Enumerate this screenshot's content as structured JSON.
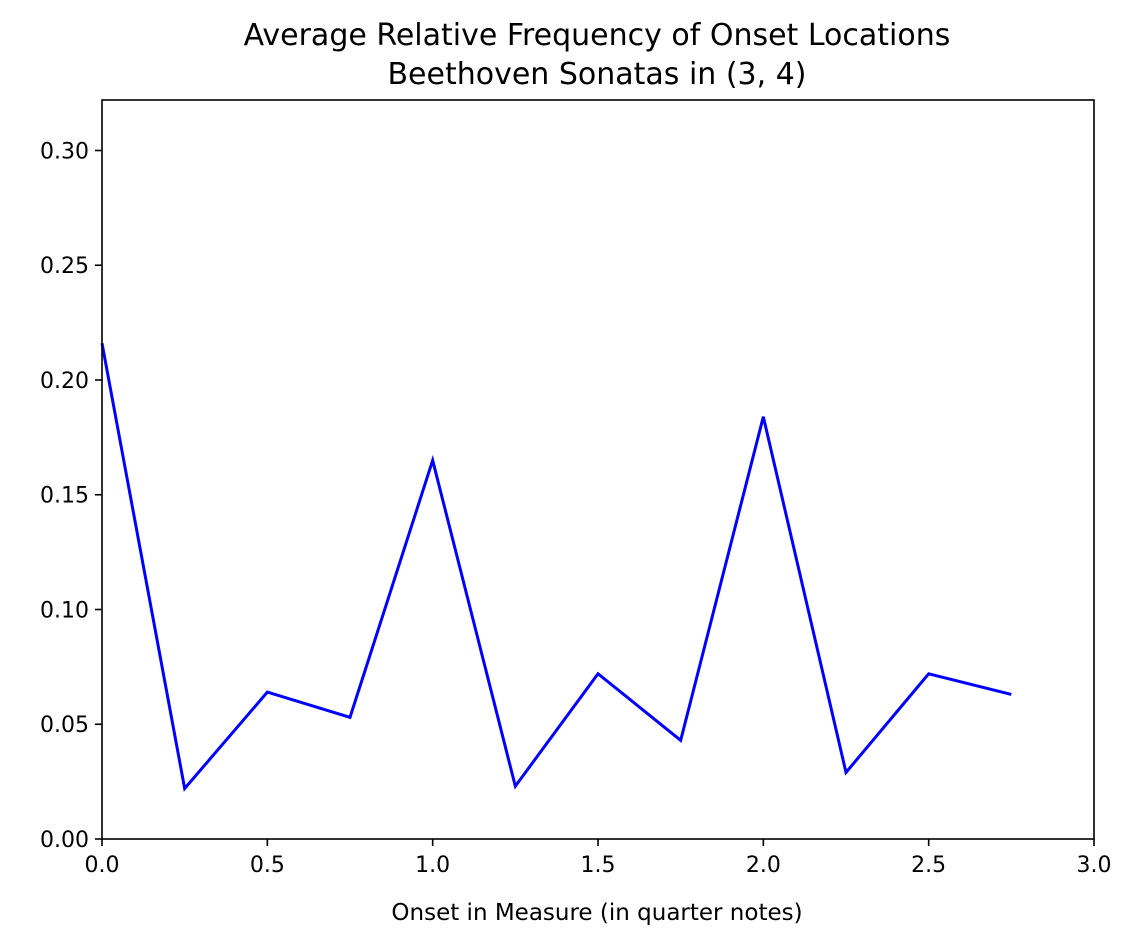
{
  "chart_data": {
    "type": "line",
    "title_lines": [
      "Average Relative Frequency of Onset Locations",
      "Beethoven Sonatas in (3, 4)"
    ],
    "xlabel": "Onset in Measure (in quarter notes)",
    "ylabel": "",
    "xlim": [
      0.0,
      3.0
    ],
    "ylim": [
      0.0,
      0.322
    ],
    "x_ticks": [
      0.0,
      0.5,
      1.0,
      1.5,
      2.0,
      2.5,
      3.0
    ],
    "x_tick_labels": [
      "0.0",
      "0.5",
      "1.0",
      "1.5",
      "2.0",
      "2.5",
      "3.0"
    ],
    "y_ticks": [
      0.0,
      0.05,
      0.1,
      0.15,
      0.2,
      0.25,
      0.3
    ],
    "y_tick_labels": [
      "0.00",
      "0.05",
      "0.10",
      "0.15",
      "0.20",
      "0.25",
      "0.30"
    ],
    "grid": false,
    "series": [
      {
        "color": "#0000ff",
        "x": [
          0.0,
          0.25,
          0.5,
          0.75,
          1.0,
          1.25,
          1.5,
          1.75,
          2.0,
          2.25,
          2.5,
          2.75
        ],
        "values": [
          0.216,
          0.022,
          0.064,
          0.053,
          0.165,
          0.023,
          0.072,
          0.043,
          0.184,
          0.029,
          0.072,
          0.063
        ]
      }
    ]
  }
}
